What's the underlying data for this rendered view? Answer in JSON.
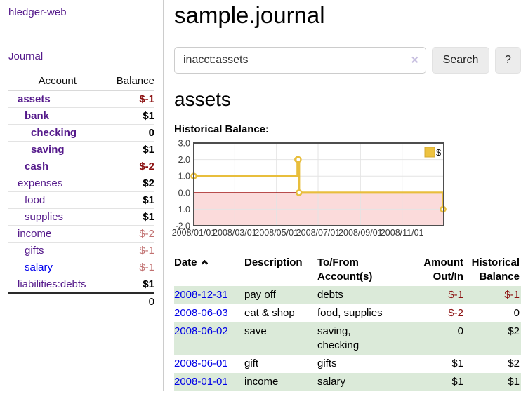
{
  "app": {
    "brand": "hledger-web"
  },
  "sidebar": {
    "journal_link": "Journal",
    "accounts": {
      "col_account": "Account",
      "col_balance": "Balance",
      "rows": [
        {
          "name": "assets",
          "balance": "$-1",
          "indent": 1,
          "style": "inacct",
          "bal_style": "neg-strong"
        },
        {
          "name": "bank",
          "balance": "$1",
          "indent": 2,
          "style": "inacct",
          "bal_style": "pos"
        },
        {
          "name": "checking",
          "balance": "0",
          "indent": 3,
          "style": "inacct",
          "bal_style": "pos"
        },
        {
          "name": "saving",
          "balance": "$1",
          "indent": 3,
          "style": "inacct",
          "bal_style": "pos"
        },
        {
          "name": "cash",
          "balance": "$-2",
          "indent": 2,
          "style": "inacct",
          "bal_style": "neg-strong"
        },
        {
          "name": "expenses",
          "balance": "$2",
          "indent": 1,
          "style": "link",
          "bal_style": "pos"
        },
        {
          "name": "food",
          "balance": "$1",
          "indent": 2,
          "style": "link",
          "bal_style": "pos"
        },
        {
          "name": "supplies",
          "balance": "$1",
          "indent": 2,
          "style": "link",
          "bal_style": "pos"
        },
        {
          "name": "income",
          "balance": "$-2",
          "indent": 1,
          "style": "link",
          "bal_style": "neg-soft"
        },
        {
          "name": "gifts",
          "balance": "$-1",
          "indent": 2,
          "style": "link",
          "bal_style": "neg-soft"
        },
        {
          "name": "salary",
          "balance": "$-1",
          "indent": 2,
          "style": "link-blue",
          "bal_style": "neg-soft"
        },
        {
          "name": "liabilities:debts",
          "balance": "$1",
          "indent": 1,
          "style": "link",
          "bal_style": "pos"
        }
      ],
      "total": "0"
    }
  },
  "main": {
    "title": "sample.journal",
    "search": {
      "value": "inacct:assets",
      "clear_icon": "×",
      "button_label": "Search",
      "help_label": "?"
    },
    "account_heading": "assets",
    "section_label": "Historical Balance:"
  },
  "chart_data": {
    "type": "line",
    "step": true,
    "title": "Historical Balance",
    "series": [
      {
        "name": "$",
        "color": "#e8be3c",
        "points": [
          {
            "date": "2008-01-01",
            "value": 1
          },
          {
            "date": "2008-06-01",
            "value": 2
          },
          {
            "date": "2008-06-02",
            "value": 2
          },
          {
            "date": "2008-06-03",
            "value": 0
          },
          {
            "date": "2008-12-31",
            "value": -1
          }
        ]
      }
    ],
    "ylim": [
      -2,
      3
    ],
    "yticks": [
      "3.0",
      "2.0",
      "1.0",
      "0.0",
      "-1.0",
      "-2.0"
    ],
    "xticks": [
      {
        "label": "2008/01/01",
        "day": 0
      },
      {
        "label": "2008/03/01",
        "day": 60
      },
      {
        "label": "2008/05/01",
        "day": 121
      },
      {
        "label": "2008/07/01",
        "day": 182
      },
      {
        "label": "2008/09/01",
        "day": 244
      },
      {
        "label": "2008/11/01",
        "day": 305
      }
    ],
    "x_total_days": 366,
    "legend": {
      "label": "$",
      "position": "top-right"
    },
    "colors": {
      "negative_fill": "#fbdbdb",
      "zero_line": "#a01010",
      "grid": "#e4e4e4",
      "border": "#4e4e4e",
      "marker_fill": "#ffffff",
      "legend_swatch": "#edc240",
      "legend_swatch_border": "#d4a930",
      "tick_text": "#3a3a3a"
    }
  },
  "register": {
    "headers": {
      "date": "Date",
      "description": "Description",
      "tofrom_line1": "To/From",
      "tofrom_line2": "Account(s)",
      "amount_line1": "Amount",
      "amount_line2": "Out/In",
      "hist_line1": "Historical",
      "hist_line2": "Balance"
    },
    "rows": [
      {
        "date": "2008-12-31",
        "description": "pay off",
        "accounts": "debts",
        "amount": "$-1",
        "balance": "$-1"
      },
      {
        "date": "2008-06-03",
        "description": "eat & shop",
        "accounts": "food, supplies",
        "amount": "$-2",
        "balance": "0"
      },
      {
        "date": "2008-06-02",
        "description": "save",
        "accounts": "saving,\nchecking",
        "amount": "0",
        "balance": "$2"
      },
      {
        "date": "2008-06-01",
        "description": "gift",
        "accounts": "gifts",
        "amount": "$1",
        "balance": "$2"
      },
      {
        "date": "2008-01-01",
        "description": "income",
        "accounts": "salary",
        "amount": "$1",
        "balance": "$1"
      }
    ]
  }
}
